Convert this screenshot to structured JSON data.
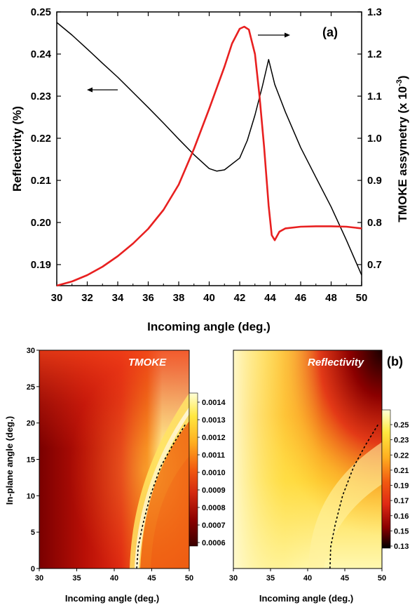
{
  "chart_data": [
    {
      "type": "line",
      "panel_label": "(a)",
      "xlabel": "Incoming angle (deg.)",
      "ylabel": "Reflectivity (%)",
      "y2label_main": "TMOKE assymetry (x 10",
      "y2label_exp": "-3",
      "y2label_close": ")",
      "xlim": [
        30,
        50
      ],
      "ylim": [
        0.185,
        0.25
      ],
      "y2lim": [
        0.65,
        1.3
      ],
      "x_ticks": [
        30,
        32,
        34,
        36,
        38,
        40,
        42,
        44,
        46,
        48,
        50
      ],
      "y_ticks": [
        "0.19",
        "0.20",
        "0.21",
        "0.22",
        "0.23",
        "0.24",
        "0.25"
      ],
      "y2_ticks": [
        "0.7",
        "0.8",
        "0.9",
        "1.0",
        "1.1",
        "1.2",
        "1.3"
      ],
      "series": [
        {
          "axis": "left",
          "color": "#000000",
          "x": [
            30,
            31,
            32,
            33,
            34,
            35,
            36,
            37,
            38,
            39,
            40,
            40.5,
            41,
            42,
            42.5,
            43,
            43.5,
            43.9,
            44.3,
            45,
            46,
            47,
            48,
            49,
            50
          ],
          "y": [
            0.2475,
            0.2445,
            0.2412,
            0.2378,
            0.2345,
            0.2309,
            0.2273,
            0.2236,
            0.2198,
            0.2161,
            0.2128,
            0.2122,
            0.2125,
            0.2153,
            0.2195,
            0.2255,
            0.2325,
            0.2387,
            0.2328,
            0.2262,
            0.2178,
            0.2107,
            0.2037,
            0.1958,
            0.1875
          ]
        },
        {
          "axis": "right",
          "color": "#e82020",
          "x": [
            30,
            31,
            32,
            33,
            34,
            35,
            36,
            37,
            38,
            39,
            40,
            41,
            41.5,
            42,
            42.3,
            42.6,
            43,
            43.3,
            43.6,
            43.9,
            44.1,
            44.3,
            44.6,
            45,
            46,
            47,
            48,
            49,
            50
          ],
          "y": [
            0.65,
            0.66,
            0.675,
            0.695,
            0.72,
            0.75,
            0.785,
            0.83,
            0.89,
            0.975,
            1.07,
            1.17,
            1.225,
            1.26,
            1.265,
            1.258,
            1.2,
            1.1,
            0.98,
            0.84,
            0.77,
            0.758,
            0.778,
            0.786,
            0.79,
            0.791,
            0.791,
            0.79,
            0.786
          ]
        }
      ],
      "arrow_left_target": "left axis",
      "arrow_right_target": "right axis"
    },
    {
      "type": "heatmap",
      "panel_label": "(b)",
      "title": "TMOKE",
      "xlabel": "Incoming angle (deg.)",
      "ylabel": "In-plane angle (deg.)",
      "xlim": [
        30,
        50
      ],
      "ylim": [
        0,
        30
      ],
      "x_ticks": [
        "30",
        "35",
        "40",
        "45",
        "50"
      ],
      "y_ticks": [
        "0",
        "5",
        "10",
        "15",
        "20",
        "25",
        "30"
      ],
      "colorbar_ticks": [
        "0.0006",
        "0.0007",
        "0.0008",
        "0.0009",
        "0.0010",
        "0.0011",
        "0.0012",
        "0.0013",
        "0.0014"
      ],
      "colormap": [
        "#3a0000",
        "#8b0000",
        "#d42a10",
        "#f25a10",
        "#ffb020",
        "#ffe840",
        "#ffffd8"
      ],
      "boundary_curve": {
        "x": [
          43,
          43.2,
          43.8,
          44.8,
          46.2,
          47.8,
          49.6
        ],
        "y": [
          0,
          3,
          6,
          10,
          14,
          17,
          20
        ]
      }
    },
    {
      "type": "heatmap",
      "title": "Reflectivity",
      "xlabel": "Incoming angle (deg.)",
      "xlim": [
        30,
        50
      ],
      "ylim": [
        0,
        30
      ],
      "x_ticks": [
        "30",
        "35",
        "40",
        "45",
        "50"
      ],
      "colorbar_ticks": [
        "0.25",
        "0.23",
        "0.22",
        "0.21",
        "0.19",
        "0.17",
        "0.16",
        "0.15",
        "0.13"
      ],
      "colormap": [
        "#000000",
        "#8b0000",
        "#e02a14",
        "#f25a10",
        "#ffb020",
        "#ffe840",
        "#ffffd8"
      ],
      "boundary_curve": {
        "x": [
          43,
          43.1,
          43.7,
          44.7,
          46.2,
          47.8,
          49.6
        ],
        "y": [
          0,
          3,
          6,
          10,
          14,
          17,
          20
        ]
      }
    }
  ]
}
